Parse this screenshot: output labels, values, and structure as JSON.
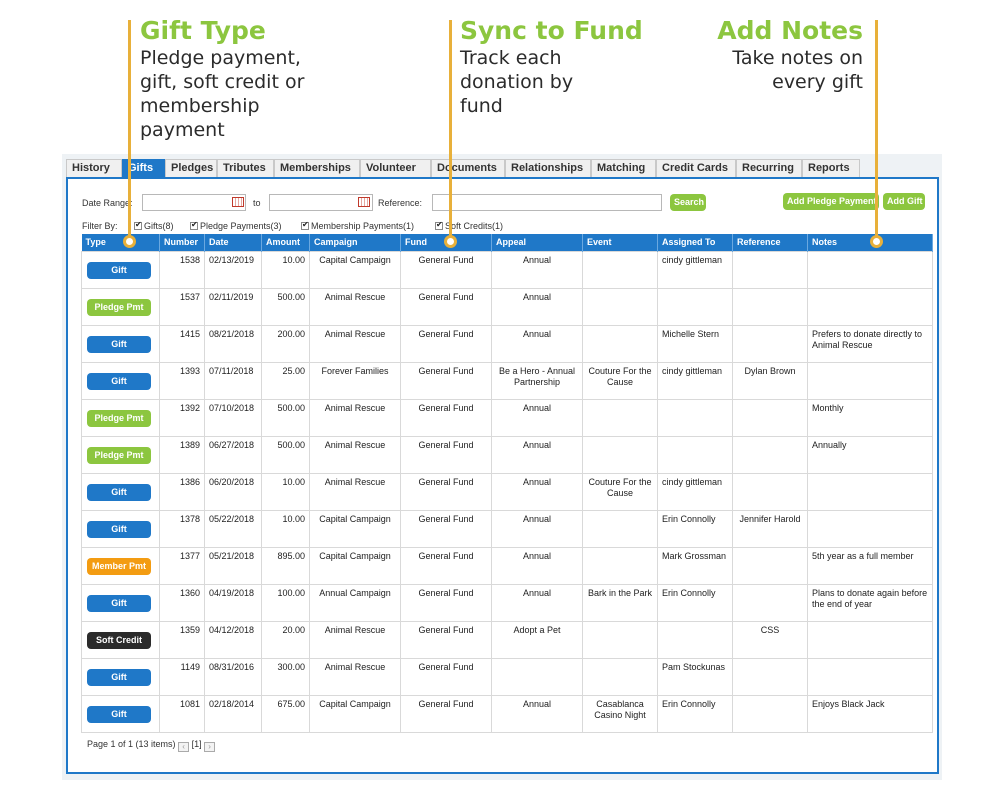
{
  "callouts": {
    "gift_type": {
      "title": "Gift Type",
      "text": "Pledge payment,\ngift, soft credit or\nmembership\npayment"
    },
    "sync_fund": {
      "title": "Sync to Fund",
      "text": "Track each\ndonation by\nfund"
    },
    "add_notes": {
      "title": "Add Notes",
      "text": "Take notes on\nevery gift"
    }
  },
  "colors": {
    "accent_green": "#8cc63f",
    "brand_blue": "#1f78c8",
    "callout_line": "#e8b03a",
    "member_orange": "#f39c12",
    "soft_credit_dark": "#2b2b2b"
  },
  "tabs": [
    {
      "label": "History",
      "active": false
    },
    {
      "label": "Gifts",
      "active": true
    },
    {
      "label": "Pledges",
      "active": false
    },
    {
      "label": "Tributes",
      "active": false
    },
    {
      "label": "Memberships",
      "active": false
    },
    {
      "label": "Volunteer",
      "active": false
    },
    {
      "label": "Documents",
      "active": false
    },
    {
      "label": "Relationships",
      "active": false
    },
    {
      "label": "Matching",
      "active": false
    },
    {
      "label": "Credit Cards",
      "active": false
    },
    {
      "label": "Recurring",
      "active": false
    },
    {
      "label": "Reports",
      "active": false
    }
  ],
  "search": {
    "date_range_label": "Date Range:",
    "to_label": "to",
    "reference_label": "Reference:",
    "date_from": "",
    "date_to": "",
    "reference": "",
    "search_button": "Search",
    "add_pledge_payment_button": "Add Pledge Payment",
    "add_gift_button": "Add Gift",
    "calendar_icon": "calendar-icon"
  },
  "filters": {
    "label": "Filter By:",
    "items": [
      {
        "label": "Gifts(8)",
        "checked": true
      },
      {
        "label": "Pledge Payments(3)",
        "checked": true
      },
      {
        "label": "Membership Payments(1)",
        "checked": true
      },
      {
        "label": "Soft Credits(1)",
        "checked": true
      }
    ]
  },
  "table": {
    "headers": [
      "Type",
      "Number",
      "Date",
      "Amount",
      "Campaign",
      "Fund",
      "Appeal",
      "Event",
      "Assigned To",
      "Reference",
      "Notes"
    ],
    "type_styles": {
      "Gift": "#1f78c8",
      "Pledge Pmt": "#8cc63f",
      "Member Pmt": "#f39c12",
      "Soft Credit": "#2b2b2b"
    },
    "rows": [
      {
        "type": "Gift",
        "number": "1538",
        "date": "02/13/2019",
        "amount": "10.00",
        "campaign": "Capital Campaign",
        "fund": "General Fund",
        "appeal": "Annual",
        "event": "",
        "assigned_to": "cindy gittleman",
        "reference": "",
        "notes": ""
      },
      {
        "type": "Pledge Pmt",
        "number": "1537",
        "date": "02/11/2019",
        "amount": "500.00",
        "campaign": "Animal Rescue",
        "fund": "General Fund",
        "appeal": "Annual",
        "event": "",
        "assigned_to": "",
        "reference": "",
        "notes": ""
      },
      {
        "type": "Gift",
        "number": "1415",
        "date": "08/21/2018",
        "amount": "200.00",
        "campaign": "Animal Rescue",
        "fund": "General Fund",
        "appeal": "Annual",
        "event": "",
        "assigned_to": "Michelle Stern",
        "reference": "",
        "notes": "Prefers to donate directly to Animal Rescue"
      },
      {
        "type": "Gift",
        "number": "1393",
        "date": "07/11/2018",
        "amount": "25.00",
        "campaign": "Forever Families",
        "fund": "General Fund",
        "appeal": "Be a Hero - Annual Partnership",
        "event": "Couture For the Cause",
        "assigned_to": "cindy gittleman",
        "reference": "Dylan Brown",
        "notes": ""
      },
      {
        "type": "Pledge Pmt",
        "number": "1392",
        "date": "07/10/2018",
        "amount": "500.00",
        "campaign": "Animal Rescue",
        "fund": "General Fund",
        "appeal": "Annual",
        "event": "",
        "assigned_to": "",
        "reference": "",
        "notes": "Monthly"
      },
      {
        "type": "Pledge Pmt",
        "number": "1389",
        "date": "06/27/2018",
        "amount": "500.00",
        "campaign": "Animal Rescue",
        "fund": "General Fund",
        "appeal": "Annual",
        "event": "",
        "assigned_to": "",
        "reference": "",
        "notes": "Annually"
      },
      {
        "type": "Gift",
        "number": "1386",
        "date": "06/20/2018",
        "amount": "10.00",
        "campaign": "Animal Rescue",
        "fund": "General Fund",
        "appeal": "Annual",
        "event": "Couture For the Cause",
        "assigned_to": "cindy gittleman",
        "reference": "",
        "notes": ""
      },
      {
        "type": "Gift",
        "number": "1378",
        "date": "05/22/2018",
        "amount": "10.00",
        "campaign": "Capital Campaign",
        "fund": "General Fund",
        "appeal": "Annual",
        "event": "",
        "assigned_to": "Erin Connolly",
        "reference": "Jennifer Harold",
        "notes": ""
      },
      {
        "type": "Member Pmt",
        "number": "1377",
        "date": "05/21/2018",
        "amount": "895.00",
        "campaign": "Capital Campaign",
        "fund": "General Fund",
        "appeal": "Annual",
        "event": "",
        "assigned_to": "Mark Grossman",
        "reference": "",
        "notes": "5th year as a full member"
      },
      {
        "type": "Gift",
        "number": "1360",
        "date": "04/19/2018",
        "amount": "100.00",
        "campaign": "Annual Campaign",
        "fund": "General Fund",
        "appeal": "Annual",
        "event": "Bark in the Park",
        "assigned_to": "Erin Connolly",
        "reference": "",
        "notes": "Plans to donate again before the end of year"
      },
      {
        "type": "Soft Credit",
        "number": "1359",
        "date": "04/12/2018",
        "amount": "20.00",
        "campaign": "Animal Rescue",
        "fund": "General Fund",
        "appeal": "Adopt a Pet",
        "event": "",
        "assigned_to": "",
        "reference": "CSS",
        "notes": ""
      },
      {
        "type": "Gift",
        "number": "1149",
        "date": "08/31/2016",
        "amount": "300.00",
        "campaign": "Animal Rescue",
        "fund": "General Fund",
        "appeal": "",
        "event": "",
        "assigned_to": "Pam Stockunas",
        "reference": "",
        "notes": ""
      },
      {
        "type": "Gift",
        "number": "1081",
        "date": "02/18/2014",
        "amount": "675.00",
        "campaign": "Capital Campaign",
        "fund": "General Fund",
        "appeal": "Annual",
        "event": "Casablanca Casino Night",
        "assigned_to": "Erin Connolly",
        "reference": "",
        "notes": "Enjoys Black Jack"
      }
    ]
  },
  "pager": {
    "text": "Page 1 of 1 (13 items)",
    "current": "[1]",
    "prev_icon": "chevron-left-icon",
    "next_icon": "chevron-right-icon"
  }
}
